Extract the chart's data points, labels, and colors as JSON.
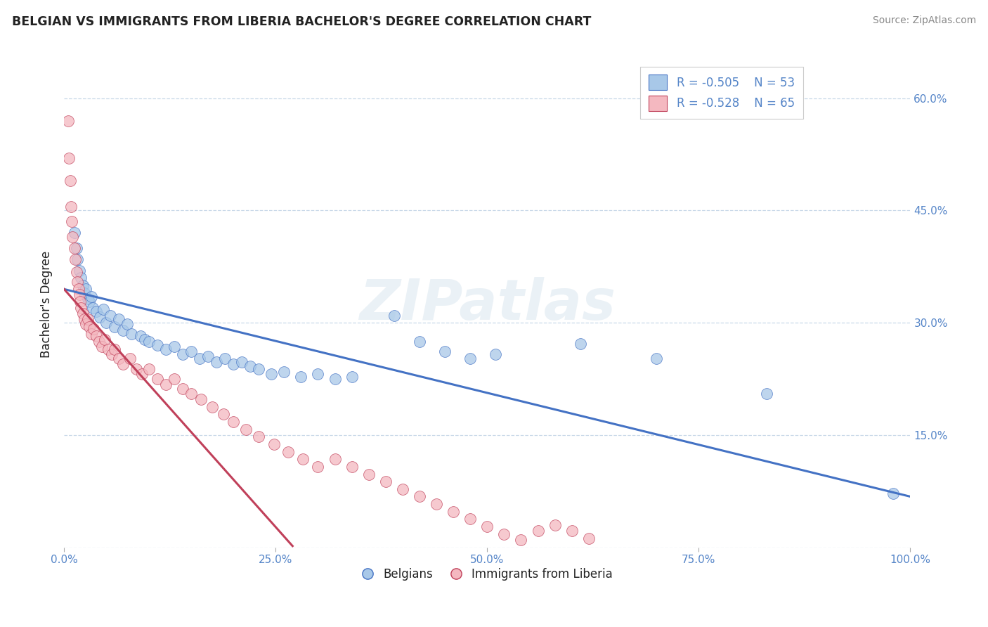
{
  "title": "BELGIAN VS IMMIGRANTS FROM LIBERIA BACHELOR'S DEGREE CORRELATION CHART",
  "source": "Source: ZipAtlas.com",
  "ylabel": "Bachelor's Degree",
  "watermark": "ZIPatlas",
  "legend1_r": "R = -0.505",
  "legend1_n": "N = 53",
  "legend2_r": "R = -0.528",
  "legend2_n": "N = 65",
  "legend_label1": "Belgians",
  "legend_label2": "Immigrants from Liberia",
  "xlim": [
    0,
    1.0
  ],
  "ylim": [
    0,
    0.65
  ],
  "x_ticks": [
    0.0,
    0.25,
    0.5,
    0.75,
    1.0
  ],
  "x_tick_labels": [
    "0.0%",
    "25.0%",
    "50.0%",
    "75.0%",
    "100.0%"
  ],
  "y_ticks": [
    0.0,
    0.15,
    0.3,
    0.45,
    0.6
  ],
  "y_tick_labels_right": [
    "",
    "15.0%",
    "30.0%",
    "45.0%",
    "60.0%"
  ],
  "color_blue": "#a8c8e8",
  "color_pink": "#f4b8c0",
  "line_blue": "#4472c4",
  "line_pink": "#c0405a",
  "title_color": "#222222",
  "tick_color": "#5585c8",
  "grid_color": "#c8d8e8",
  "blue_scatter": [
    [
      0.012,
      0.42
    ],
    [
      0.015,
      0.4
    ],
    [
      0.016,
      0.385
    ],
    [
      0.018,
      0.37
    ],
    [
      0.02,
      0.36
    ],
    [
      0.022,
      0.35
    ],
    [
      0.024,
      0.34
    ],
    [
      0.026,
      0.345
    ],
    [
      0.028,
      0.332
    ],
    [
      0.03,
      0.328
    ],
    [
      0.032,
      0.335
    ],
    [
      0.034,
      0.32
    ],
    [
      0.038,
      0.315
    ],
    [
      0.042,
      0.308
    ],
    [
      0.046,
      0.318
    ],
    [
      0.05,
      0.3
    ],
    [
      0.055,
      0.31
    ],
    [
      0.06,
      0.295
    ],
    [
      0.065,
      0.305
    ],
    [
      0.07,
      0.29
    ],
    [
      0.075,
      0.298
    ],
    [
      0.08,
      0.285
    ],
    [
      0.09,
      0.282
    ],
    [
      0.095,
      0.278
    ],
    [
      0.1,
      0.275
    ],
    [
      0.11,
      0.27
    ],
    [
      0.12,
      0.265
    ],
    [
      0.13,
      0.268
    ],
    [
      0.14,
      0.258
    ],
    [
      0.15,
      0.262
    ],
    [
      0.16,
      0.252
    ],
    [
      0.17,
      0.255
    ],
    [
      0.18,
      0.248
    ],
    [
      0.19,
      0.252
    ],
    [
      0.2,
      0.245
    ],
    [
      0.21,
      0.248
    ],
    [
      0.22,
      0.242
    ],
    [
      0.23,
      0.238
    ],
    [
      0.245,
      0.232
    ],
    [
      0.26,
      0.235
    ],
    [
      0.28,
      0.228
    ],
    [
      0.3,
      0.232
    ],
    [
      0.32,
      0.225
    ],
    [
      0.34,
      0.228
    ],
    [
      0.39,
      0.31
    ],
    [
      0.42,
      0.275
    ],
    [
      0.45,
      0.262
    ],
    [
      0.48,
      0.252
    ],
    [
      0.51,
      0.258
    ],
    [
      0.61,
      0.272
    ],
    [
      0.7,
      0.252
    ],
    [
      0.83,
      0.205
    ],
    [
      0.98,
      0.072
    ]
  ],
  "pink_scatter": [
    [
      0.005,
      0.57
    ],
    [
      0.006,
      0.52
    ],
    [
      0.007,
      0.49
    ],
    [
      0.008,
      0.455
    ],
    [
      0.009,
      0.435
    ],
    [
      0.01,
      0.415
    ],
    [
      0.012,
      0.4
    ],
    [
      0.013,
      0.385
    ],
    [
      0.015,
      0.368
    ],
    [
      0.016,
      0.355
    ],
    [
      0.017,
      0.345
    ],
    [
      0.018,
      0.338
    ],
    [
      0.019,
      0.328
    ],
    [
      0.02,
      0.32
    ],
    [
      0.022,
      0.312
    ],
    [
      0.024,
      0.305
    ],
    [
      0.026,
      0.298
    ],
    [
      0.028,
      0.305
    ],
    [
      0.03,
      0.295
    ],
    [
      0.032,
      0.285
    ],
    [
      0.035,
      0.292
    ],
    [
      0.038,
      0.282
    ],
    [
      0.041,
      0.275
    ],
    [
      0.045,
      0.268
    ],
    [
      0.048,
      0.278
    ],
    [
      0.052,
      0.265
    ],
    [
      0.056,
      0.258
    ],
    [
      0.06,
      0.265
    ],
    [
      0.065,
      0.252
    ],
    [
      0.07,
      0.245
    ],
    [
      0.078,
      0.252
    ],
    [
      0.085,
      0.238
    ],
    [
      0.092,
      0.232
    ],
    [
      0.1,
      0.238
    ],
    [
      0.11,
      0.225
    ],
    [
      0.12,
      0.218
    ],
    [
      0.13,
      0.225
    ],
    [
      0.14,
      0.212
    ],
    [
      0.15,
      0.205
    ],
    [
      0.162,
      0.198
    ],
    [
      0.175,
      0.188
    ],
    [
      0.188,
      0.178
    ],
    [
      0.2,
      0.168
    ],
    [
      0.215,
      0.158
    ],
    [
      0.23,
      0.148
    ],
    [
      0.248,
      0.138
    ],
    [
      0.265,
      0.128
    ],
    [
      0.282,
      0.118
    ],
    [
      0.3,
      0.108
    ],
    [
      0.32,
      0.118
    ],
    [
      0.34,
      0.108
    ],
    [
      0.36,
      0.098
    ],
    [
      0.38,
      0.088
    ],
    [
      0.4,
      0.078
    ],
    [
      0.42,
      0.068
    ],
    [
      0.44,
      0.058
    ],
    [
      0.46,
      0.048
    ],
    [
      0.48,
      0.038
    ],
    [
      0.5,
      0.028
    ],
    [
      0.52,
      0.018
    ],
    [
      0.54,
      0.01
    ],
    [
      0.56,
      0.022
    ],
    [
      0.58,
      0.03
    ],
    [
      0.6,
      0.022
    ],
    [
      0.62,
      0.012
    ]
  ],
  "blue_line_x": [
    0.0,
    1.0
  ],
  "blue_line_y": [
    0.345,
    0.068
  ],
  "pink_line_x": [
    0.0,
    0.27
  ],
  "pink_line_y": [
    0.345,
    0.002
  ]
}
